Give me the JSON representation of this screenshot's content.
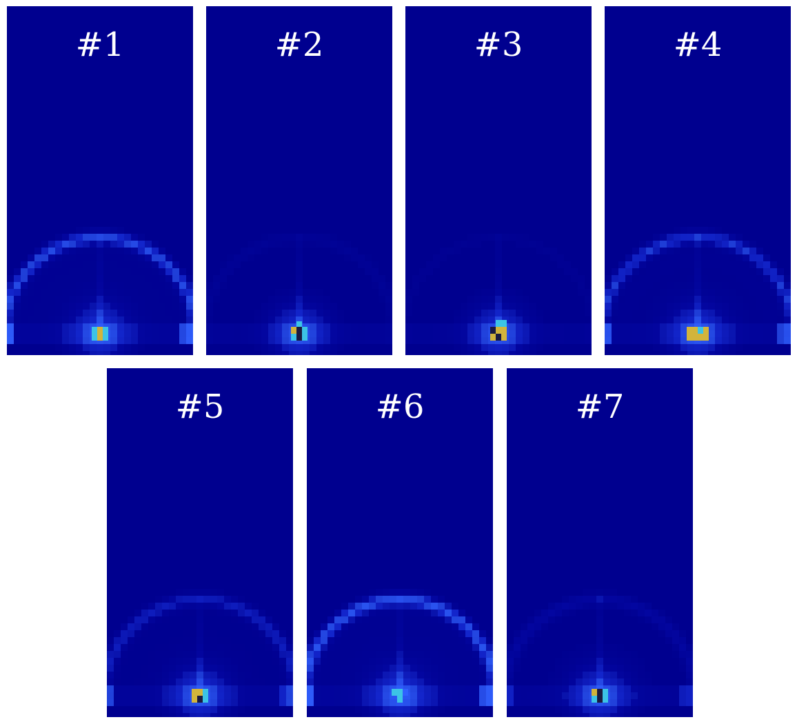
{
  "colors": {
    "background": "#00008f",
    "glow_dim": "#0a14c8",
    "glow_mid": "#1e3cf0",
    "glow_bright": "#3060ff",
    "cyan": "#3cc3e6",
    "yellow": "#d2b43c",
    "dark": "#1a1a40",
    "label": "#ffffff"
  },
  "panels": [
    {
      "label": "#1",
      "arc_strength": 0.9,
      "side_glow": true,
      "core": [
        {
          "dx": -8,
          "dy": 0,
          "c": "cyan"
        },
        {
          "dx": 0,
          "dy": 0,
          "c": "yellow"
        },
        {
          "dx": 8,
          "dy": 0,
          "c": "cyan"
        },
        {
          "dx": -8,
          "dy": 10,
          "c": "cyan"
        },
        {
          "dx": 0,
          "dy": 10,
          "c": "yellow"
        },
        {
          "dx": 8,
          "dy": 10,
          "c": "cyan"
        }
      ]
    },
    {
      "label": "#2",
      "arc_strength": 0.15,
      "side_glow": false,
      "core": [
        {
          "dx": 0,
          "dy": -8,
          "c": "cyan"
        },
        {
          "dx": -8,
          "dy": 0,
          "c": "yellow"
        },
        {
          "dx": 0,
          "dy": 0,
          "c": "dark"
        },
        {
          "dx": 8,
          "dy": 0,
          "c": "cyan"
        },
        {
          "dx": -8,
          "dy": 10,
          "c": "cyan"
        },
        {
          "dx": 0,
          "dy": 10,
          "c": "dark"
        },
        {
          "dx": 8,
          "dy": 10,
          "c": "cyan"
        }
      ]
    },
    {
      "label": "#3",
      "arc_strength": 0.1,
      "side_glow": false,
      "core": [
        {
          "dx": 0,
          "dy": -10,
          "c": "cyan"
        },
        {
          "dx": 8,
          "dy": -10,
          "c": "cyan"
        },
        {
          "dx": -8,
          "dy": 0,
          "c": "dark"
        },
        {
          "dx": 0,
          "dy": 0,
          "c": "yellow"
        },
        {
          "dx": 8,
          "dy": 0,
          "c": "yellow"
        },
        {
          "dx": -8,
          "dy": 10,
          "c": "yellow"
        },
        {
          "dx": 0,
          "dy": 10,
          "c": "dark"
        },
        {
          "dx": 8,
          "dy": 10,
          "c": "yellow"
        }
      ]
    },
    {
      "label": "#4",
      "arc_strength": 0.75,
      "side_glow": true,
      "core": [
        {
          "dx": -12,
          "dy": 0,
          "c": "yellow"
        },
        {
          "dx": -4,
          "dy": 0,
          "c": "yellow"
        },
        {
          "dx": 4,
          "dy": 0,
          "c": "cyan"
        },
        {
          "dx": 12,
          "dy": 0,
          "c": "yellow"
        },
        {
          "dx": -12,
          "dy": 10,
          "c": "yellow"
        },
        {
          "dx": -4,
          "dy": 10,
          "c": "yellow"
        },
        {
          "dx": 4,
          "dy": 10,
          "c": "yellow"
        },
        {
          "dx": 12,
          "dy": 10,
          "c": "yellow"
        }
      ]
    },
    {
      "label": "#5",
      "arc_strength": 0.55,
      "side_glow": true,
      "core": [
        {
          "dx": -8,
          "dy": 0,
          "c": "yellow"
        },
        {
          "dx": 0,
          "dy": 0,
          "c": "yellow"
        },
        {
          "dx": 8,
          "dy": 0,
          "c": "cyan"
        },
        {
          "dx": -8,
          "dy": 10,
          "c": "yellow"
        },
        {
          "dx": 0,
          "dy": 10,
          "c": "dark"
        },
        {
          "dx": 8,
          "dy": 10,
          "c": "cyan"
        }
      ]
    },
    {
      "label": "#6",
      "arc_strength": 1.0,
      "side_glow": true,
      "core": [
        {
          "dx": -8,
          "dy": 0,
          "c": "cyan"
        },
        {
          "dx": 0,
          "dy": 0,
          "c": "cyan"
        },
        {
          "dx": 8,
          "dy": 0,
          "c": "glow_bright"
        },
        {
          "dx": 0,
          "dy": 10,
          "c": "cyan"
        }
      ]
    },
    {
      "label": "#7",
      "arc_strength": 0.35,
      "side_glow": true,
      "core": [
        {
          "dx": -8,
          "dy": 0,
          "c": "yellow"
        },
        {
          "dx": 0,
          "dy": 0,
          "c": "dark"
        },
        {
          "dx": 8,
          "dy": 0,
          "c": "cyan"
        },
        {
          "dx": -8,
          "dy": 10,
          "c": "cyan"
        },
        {
          "dx": 0,
          "dy": 10,
          "c": "dark"
        },
        {
          "dx": 8,
          "dy": 10,
          "c": "cyan"
        }
      ]
    }
  ]
}
